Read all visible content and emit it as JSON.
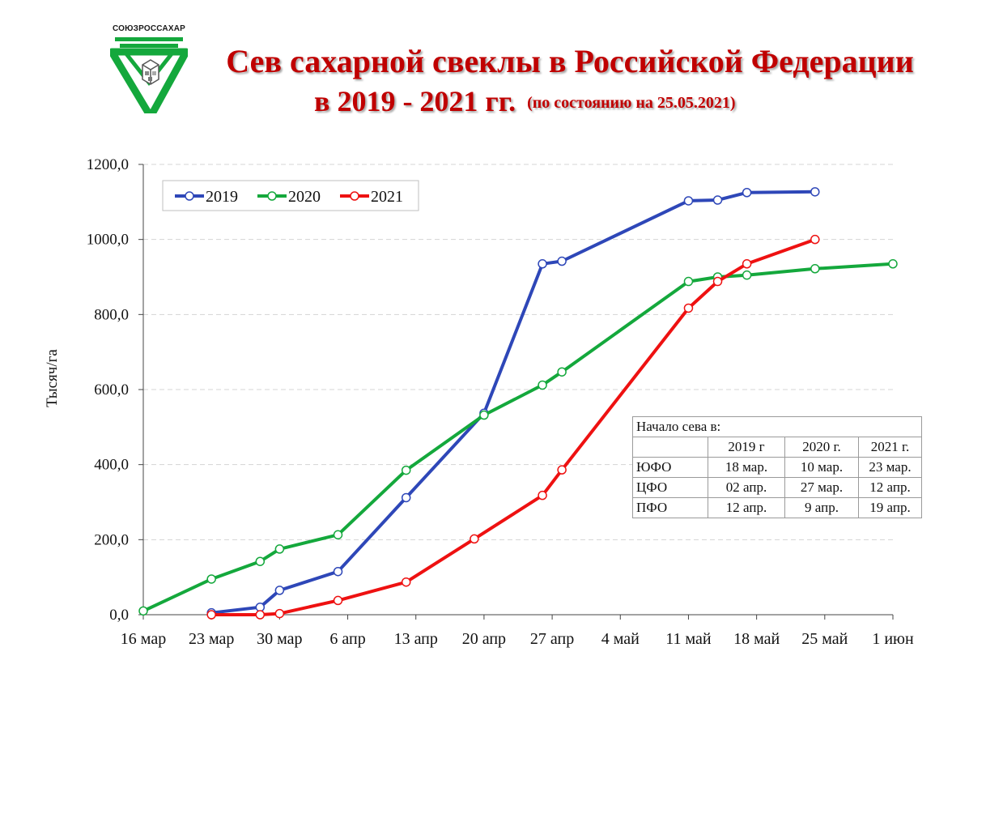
{
  "logo": {
    "text": "СОЮЗРОССАХАР"
  },
  "title": {
    "line1": "Сев сахарной свеклы в Российской Федерации",
    "line2": "в 2019 - 2021 гг.",
    "subtitle": "(по состоянию на 25.05.2021)"
  },
  "colors": {
    "s2019": "#2e47b8",
    "s2020": "#14a83c",
    "s2021": "#ee1111",
    "title": "#c00000"
  },
  "chart_data": {
    "type": "line",
    "ylabel": "Тысяч/га",
    "ylim": [
      0,
      1200
    ],
    "yticks": [
      "0,0",
      "200,0",
      "400,0",
      "600,0",
      "800,0",
      "1000,0",
      "1200,0"
    ],
    "ytick_values": [
      0,
      200,
      400,
      600,
      800,
      1000,
      1200
    ],
    "xlim": [
      "2021-03-16",
      "2021-06-01"
    ],
    "xticks": [
      "16 мар",
      "23 мар",
      "30 мар",
      "6 апр",
      "13 апр",
      "20 апр",
      "27 апр",
      "4 май",
      "11 май",
      "18 май",
      "25 май",
      "1 июн"
    ],
    "xtick_dates": [
      "2021-03-16",
      "2021-03-23",
      "2021-03-30",
      "2021-04-06",
      "2021-04-13",
      "2021-04-20",
      "2021-04-27",
      "2021-05-04",
      "2021-05-11",
      "2021-05-18",
      "2021-05-25",
      "2021-06-01"
    ],
    "grid": true,
    "legend": "top-left",
    "series": [
      {
        "name": "2019",
        "points": [
          [
            "2021-03-23",
            5
          ],
          [
            "2021-03-28",
            20
          ],
          [
            "2021-03-30",
            65
          ],
          [
            "2021-04-05",
            115
          ],
          [
            "2021-04-12",
            312
          ],
          [
            "2021-04-20",
            537
          ],
          [
            "2021-04-26",
            935
          ],
          [
            "2021-04-28",
            942
          ],
          [
            "2021-05-11",
            1103
          ],
          [
            "2021-05-14",
            1105
          ],
          [
            "2021-05-17",
            1125
          ],
          [
            "2021-05-24",
            1127
          ]
        ]
      },
      {
        "name": "2020",
        "points": [
          [
            "2021-03-16",
            10
          ],
          [
            "2021-03-23",
            95
          ],
          [
            "2021-03-28",
            142
          ],
          [
            "2021-03-30",
            175
          ],
          [
            "2021-04-05",
            213
          ],
          [
            "2021-04-12",
            385
          ],
          [
            "2021-04-20",
            532
          ],
          [
            "2021-04-26",
            612
          ],
          [
            "2021-04-28",
            647
          ],
          [
            "2021-05-11",
            888
          ],
          [
            "2021-05-14",
            900
          ],
          [
            "2021-05-17",
            905
          ],
          [
            "2021-05-24",
            922
          ],
          [
            "2021-06-01",
            935
          ]
        ]
      },
      {
        "name": "2021",
        "points": [
          [
            "2021-03-23",
            0
          ],
          [
            "2021-03-28",
            0
          ],
          [
            "2021-03-30",
            3
          ],
          [
            "2021-04-05",
            38
          ],
          [
            "2021-04-12",
            87
          ],
          [
            "2021-04-19",
            202
          ],
          [
            "2021-04-26",
            318
          ],
          [
            "2021-04-28",
            386
          ],
          [
            "2021-05-11",
            817
          ],
          [
            "2021-05-14",
            888
          ],
          [
            "2021-05-17",
            935
          ],
          [
            "2021-05-24",
            1000
          ]
        ]
      }
    ]
  },
  "table": {
    "header": "Начало сева в:",
    "columns": [
      "",
      "2019 г",
      "2020  г.",
      "2021 г."
    ],
    "rows": [
      [
        "ЮФО",
        "18 мар.",
        "10 мар.",
        "23 мар."
      ],
      [
        "ЦФО",
        "02 апр.",
        "27 мар.",
        "12 апр."
      ],
      [
        "ПФО",
        "12 апр.",
        "9 апр.",
        "19 апр."
      ]
    ]
  }
}
